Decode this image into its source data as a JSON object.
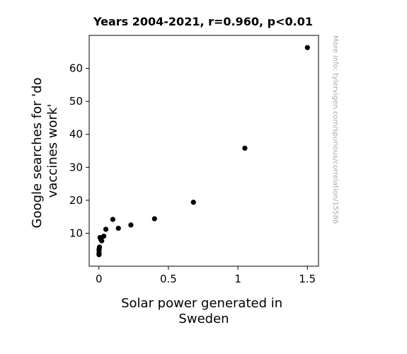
{
  "chart_data": {
    "type": "scatter",
    "title": "Years 2004-2021, r=0.960, p<0.01",
    "xlabel_lines": [
      "Solar power generated in",
      "Sweden"
    ],
    "ylabel_lines": [
      "Google searches for 'do",
      "vaccines work'"
    ],
    "xlim": [
      -0.07,
      1.58
    ],
    "ylim": [
      0,
      70
    ],
    "xticks": [
      0,
      0.5,
      1,
      1.5
    ],
    "xtick_labels": [
      "0",
      "0.5",
      "1",
      "1.5"
    ],
    "yticks": [
      10,
      20,
      30,
      40,
      50,
      60
    ],
    "ytick_labels": [
      "10",
      "20",
      "30",
      "40",
      "50",
      "60"
    ],
    "grid": false,
    "marker_color": "#000000",
    "points": [
      {
        "x": 0.0006,
        "y": 3.5
      },
      {
        "x": 0.0008,
        "y": 4.0
      },
      {
        "x": 0.001,
        "y": 4.8
      },
      {
        "x": 0.0015,
        "y": 3.8
      },
      {
        "x": 0.002,
        "y": 5.3
      },
      {
        "x": 0.004,
        "y": 5.8
      },
      {
        "x": 0.008,
        "y": 8.7
      },
      {
        "x": 0.015,
        "y": 8.0
      },
      {
        "x": 0.02,
        "y": 7.7
      },
      {
        "x": 0.035,
        "y": 9.1
      },
      {
        "x": 0.05,
        "y": 11.2
      },
      {
        "x": 0.1,
        "y": 14.2
      },
      {
        "x": 0.14,
        "y": 11.5
      },
      {
        "x": 0.23,
        "y": 12.5
      },
      {
        "x": 0.4,
        "y": 14.4
      },
      {
        "x": 0.68,
        "y": 19.4
      },
      {
        "x": 1.05,
        "y": 35.8
      },
      {
        "x": 1.5,
        "y": 66.3
      }
    ]
  },
  "watermark": "More info: tylervigen.com/spurious/correlation/15586"
}
